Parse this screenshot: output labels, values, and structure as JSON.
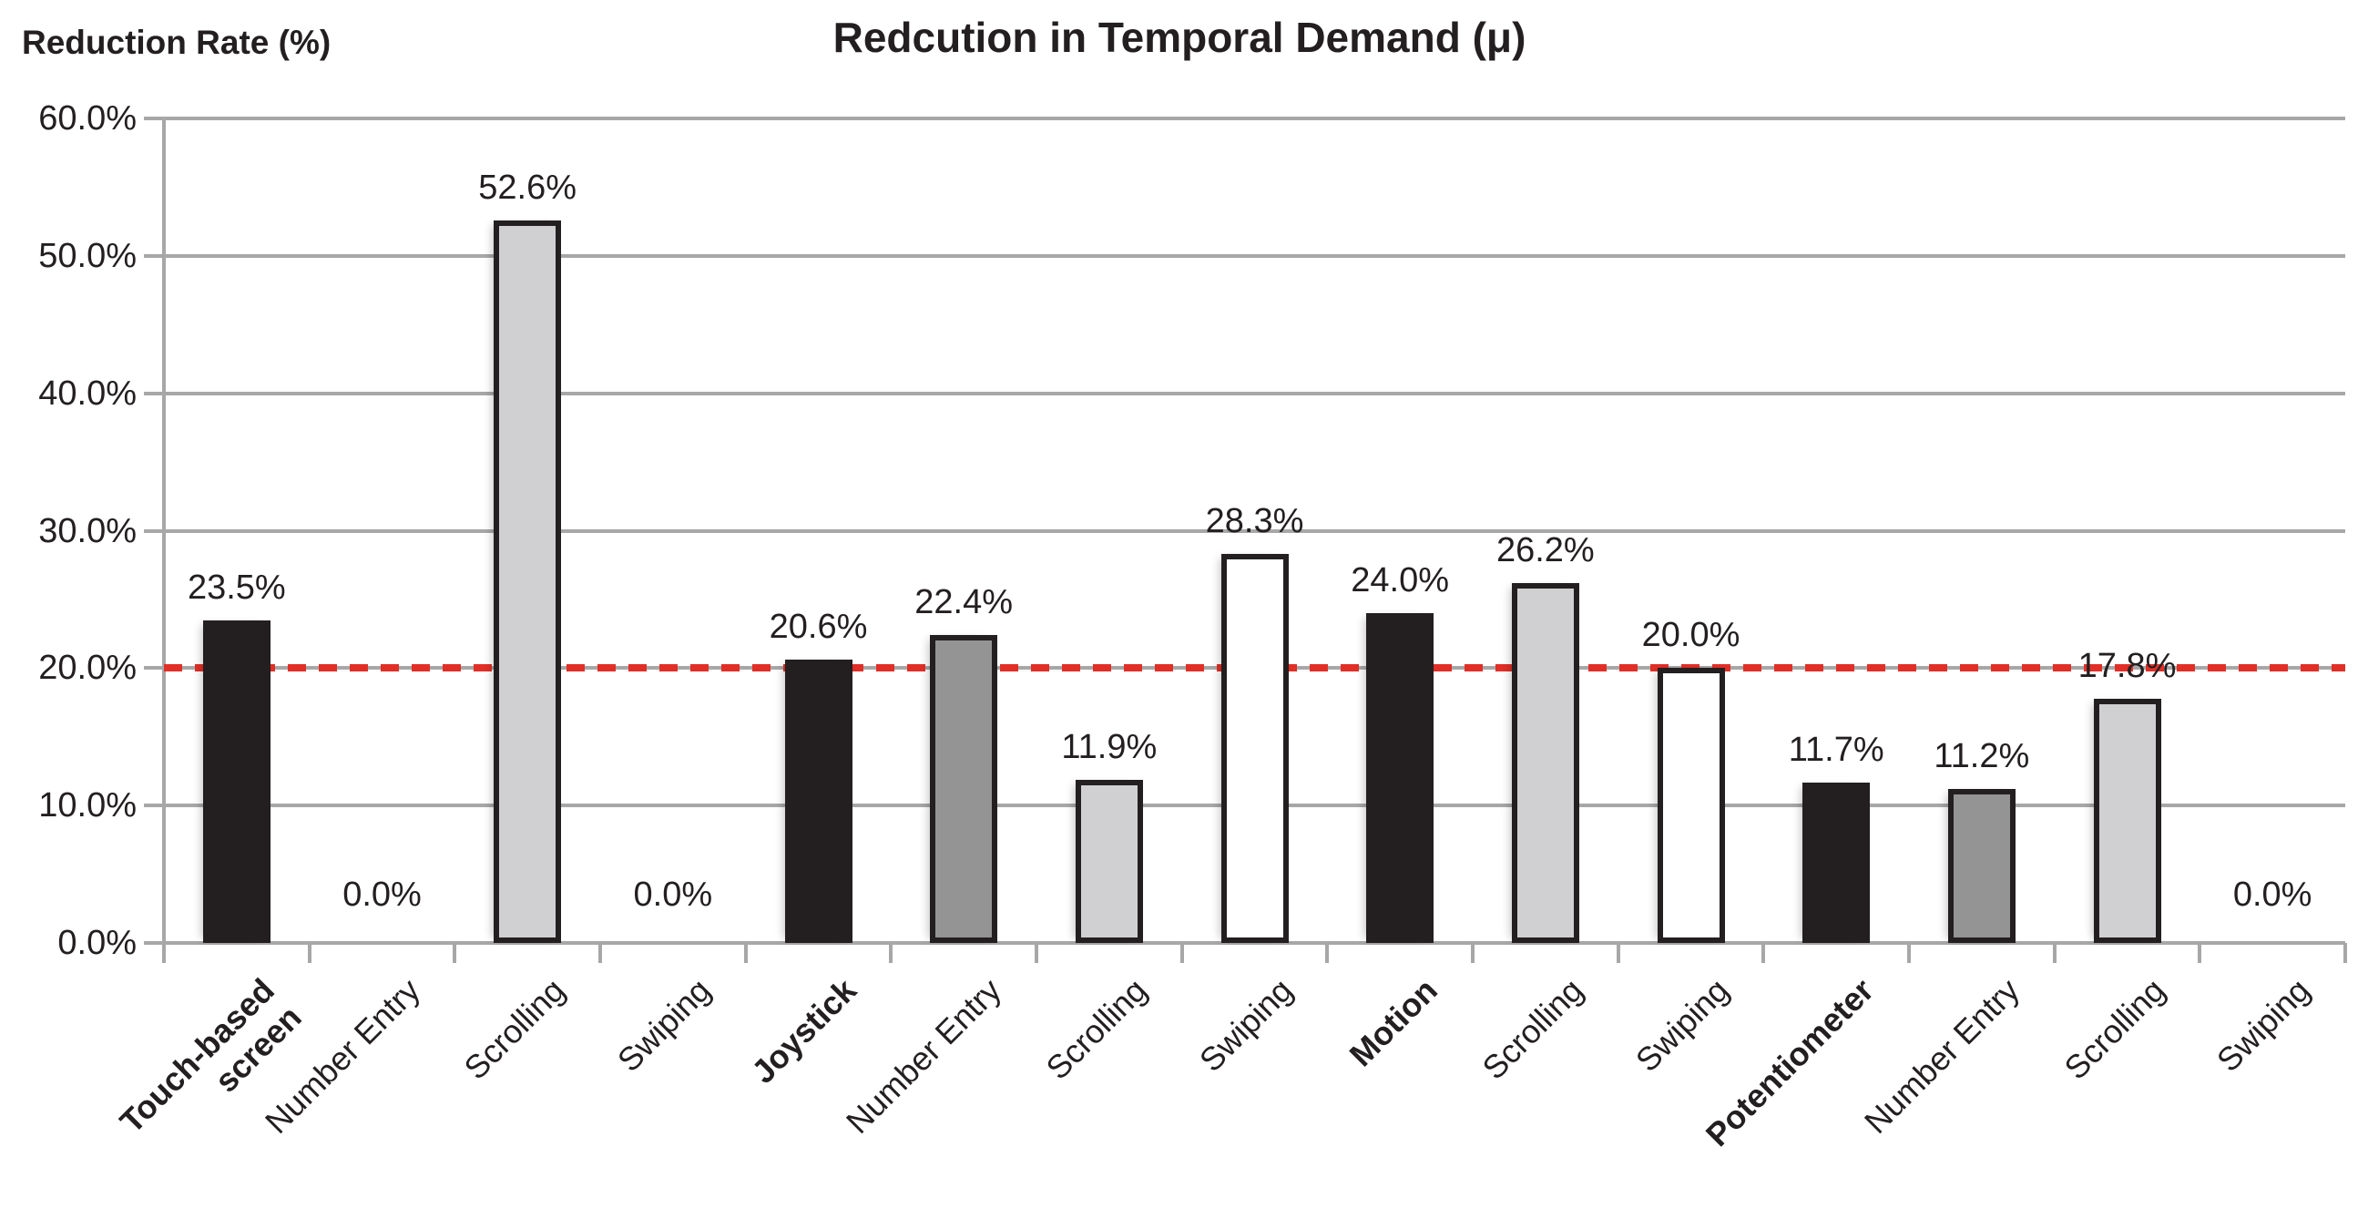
{
  "chart_data": {
    "type": "bar",
    "title": "Redcution in Temporal Demand (μ)",
    "ylabel": "Reduction Rate (%)",
    "xlabel": "",
    "ylim": [
      0,
      60
    ],
    "ytick_step": 10,
    "ytick_labels": [
      "0.0%",
      "10.0%",
      "20.0%",
      "30.0%",
      "40.0%",
      "50.0%",
      "60.0%"
    ],
    "grid": "horizontal",
    "legend": "none",
    "reference_line": {
      "value": 20,
      "style": "dashed",
      "color": "#e12f27"
    },
    "categories": [
      {
        "label": "Touch-based screen",
        "bold": true,
        "style": "black",
        "value": 23.5,
        "value_label": "23.5%"
      },
      {
        "label": "Number Entry",
        "bold": false,
        "style": "none",
        "value": 0.0,
        "value_label": "0.0%"
      },
      {
        "label": "Scrolling",
        "bold": false,
        "style": "lightgray",
        "value": 52.6,
        "value_label": "52.6%"
      },
      {
        "label": "Swiping",
        "bold": false,
        "style": "none",
        "value": 0.0,
        "value_label": "0.0%"
      },
      {
        "label": "Joystick",
        "bold": true,
        "style": "black",
        "value": 20.6,
        "value_label": "20.6%"
      },
      {
        "label": "Number Entry",
        "bold": false,
        "style": "darkgray",
        "value": 22.4,
        "value_label": "22.4%"
      },
      {
        "label": "Scrolling",
        "bold": false,
        "style": "lightgray",
        "value": 11.9,
        "value_label": "11.9%"
      },
      {
        "label": "Swiping",
        "bold": false,
        "style": "white",
        "value": 28.3,
        "value_label": "28.3%"
      },
      {
        "label": "Motion",
        "bold": true,
        "style": "black",
        "value": 24.0,
        "value_label": "24.0%"
      },
      {
        "label": "Scrolling",
        "bold": false,
        "style": "lightgray",
        "value": 26.2,
        "value_label": "26.2%"
      },
      {
        "label": "Swiping",
        "bold": false,
        "style": "white",
        "value": 20.0,
        "value_label": "20.0%"
      },
      {
        "label": "Potentiometer",
        "bold": true,
        "style": "black",
        "value": 11.7,
        "value_label": "11.7%"
      },
      {
        "label": "Number Entry",
        "bold": false,
        "style": "darkgray",
        "value": 11.2,
        "value_label": "11.2%"
      },
      {
        "label": "Scrolling",
        "bold": false,
        "style": "lightgray",
        "value": 17.8,
        "value_label": "17.8%"
      },
      {
        "label": "Swiping",
        "bold": false,
        "style": "none",
        "value": 0.0,
        "value_label": "0.0%"
      }
    ]
  },
  "colors": {
    "black_bar": "#231f20",
    "dark_gray_bar": "#949494",
    "light_gray_bar": "#d0d0d2",
    "white_bar": "#ffffff",
    "bar_border": "#231f20",
    "gridline": "#a7a7a7",
    "reference_line": "#e12f27",
    "text": "#231f20"
  }
}
